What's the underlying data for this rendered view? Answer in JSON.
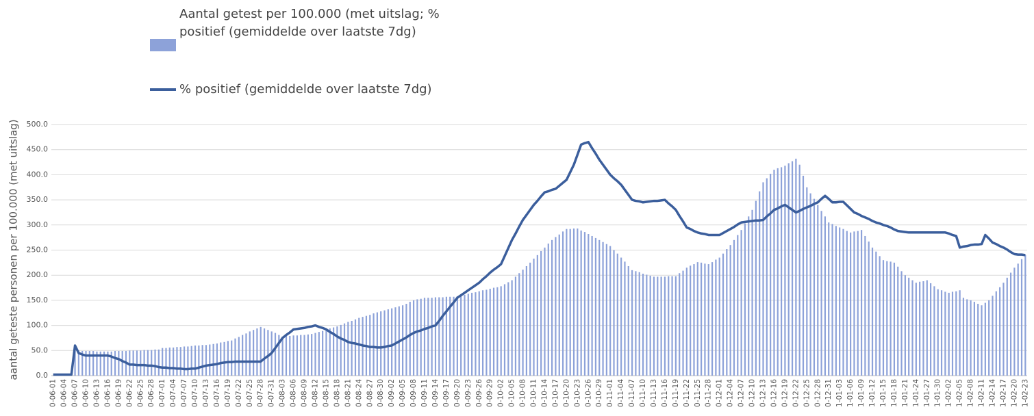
{
  "chart_data": {
    "type": "bar_line",
    "y_label": "aantal geteste personen per 100.000 (met uitslag)",
    "ylim": [
      0,
      500
    ],
    "yticks": [
      {
        "value": 0,
        "label": "0.0"
      },
      {
        "value": 50,
        "label": "50.0"
      },
      {
        "value": 100,
        "label": "100.0"
      },
      {
        "value": 150,
        "label": "150.0"
      },
      {
        "value": 200,
        "label": "200.0"
      },
      {
        "value": 250,
        "label": "250.0"
      },
      {
        "value": 300,
        "label": "300.0"
      },
      {
        "value": 350,
        "label": "350.0"
      },
      {
        "value": 400,
        "label": "400.0"
      },
      {
        "value": 450,
        "label": "450.0"
      },
      {
        "value": 500,
        "label": "500.0"
      }
    ],
    "grid": true,
    "categories": [
      "0-06-01",
      null,
      null,
      "0-06-04",
      null,
      null,
      "0-06-07",
      null,
      null,
      "0-06-10",
      null,
      null,
      "0-06-13",
      null,
      null,
      "0-06-16",
      null,
      null,
      "0-06-19",
      null,
      null,
      "0-06-22",
      null,
      null,
      "0-06-25",
      null,
      null,
      "0-06-28",
      null,
      null,
      "0-07-01",
      null,
      null,
      "0-07-04",
      null,
      null,
      "0-07-07",
      null,
      null,
      "0-07-10",
      null,
      null,
      "0-07-13",
      null,
      null,
      "0-07-16",
      null,
      null,
      "0-07-19",
      null,
      null,
      "0-07-22",
      null,
      null,
      "0-07-25",
      null,
      null,
      "0-07-28",
      null,
      null,
      "0-07-31",
      null,
      null,
      "0-08-03",
      null,
      null,
      "0-08-06",
      null,
      null,
      "0-08-09",
      null,
      null,
      "0-08-12",
      null,
      null,
      "0-08-15",
      null,
      null,
      "0-08-18",
      null,
      null,
      "0-08-21",
      null,
      null,
      "0-08-24",
      null,
      null,
      "0-08-27",
      null,
      null,
      "0-08-30",
      null,
      null,
      "0-09-02",
      null,
      null,
      "0-09-05",
      null,
      null,
      "0-09-08",
      null,
      null,
      "0-09-11",
      null,
      null,
      "0-09-14",
      null,
      null,
      "0-09-17",
      null,
      null,
      "0-09-20",
      null,
      null,
      "0-09-23",
      null,
      null,
      "0-09-26",
      null,
      null,
      "0-09-29",
      null,
      null,
      "0-10-02",
      null,
      null,
      "0-10-05",
      null,
      null,
      "0-10-08",
      null,
      null,
      "0-10-11",
      null,
      null,
      "0-10-14",
      null,
      null,
      "0-10-17",
      null,
      null,
      "0-10-20",
      null,
      null,
      "0-10-23",
      null,
      null,
      "0-10-26",
      null,
      null,
      "0-10-29",
      null,
      null,
      "0-11-01",
      null,
      null,
      "0-11-04",
      null,
      null,
      "0-11-07",
      null,
      null,
      "0-11-10",
      null,
      null,
      "0-11-13",
      null,
      null,
      "0-11-16",
      null,
      null,
      "0-11-19",
      null,
      null,
      "0-11-22",
      null,
      null,
      "0-11-25",
      null,
      null,
      "0-11-28",
      null,
      null,
      "0-12-01",
      null,
      null,
      "0-12-04",
      null,
      null,
      "0-12-07",
      null,
      null,
      "0-12-10",
      null,
      null,
      "0-12-13",
      null,
      null,
      "0-12-16",
      null,
      null,
      "0-12-19",
      null,
      null,
      "0-12-22",
      null,
      null,
      "0-12-25",
      null,
      null,
      "0-12-28",
      null,
      null,
      "0-12-31",
      null,
      null,
      "1-01-03",
      null,
      null,
      "1-01-06",
      null,
      null,
      "1-01-09",
      null,
      null,
      "1-01-12",
      null,
      null,
      "1-01-15",
      null,
      null,
      "1-01-18",
      null,
      null,
      "1-01-21",
      null,
      null,
      "1-01-24",
      null,
      null,
      "1-01-27",
      null,
      null,
      "1-01-30",
      null,
      null,
      "1-02-02",
      null,
      null,
      "1-02-05",
      null,
      null,
      "1-02-08",
      null,
      null,
      "1-02-11",
      null,
      null,
      "1-02-14",
      null,
      null,
      "1-02-17",
      null,
      null,
      "1-02-20",
      null,
      null,
      "1-02-23"
    ],
    "series": [
      {
        "name": "Aantal getest per 100.000 (met uitslag; % positief (gemiddelde over laatste 7dg)",
        "kind": "bar",
        "color": "#8da2d9",
        "values": [
          0,
          0,
          0,
          0,
          0,
          0,
          50,
          50,
          49,
          49,
          49,
          49,
          48,
          48,
          48,
          48,
          48,
          49,
          49,
          49,
          49,
          50,
          50,
          50,
          50,
          51,
          51,
          51,
          52,
          52,
          55,
          55,
          56,
          56,
          57,
          57,
          58,
          58,
          59,
          60,
          60,
          61,
          61,
          62,
          63,
          64,
          66,
          67,
          69,
          70,
          74,
          77,
          81,
          84,
          88,
          91,
          94,
          97,
          94,
          91,
          88,
          85,
          81,
          78,
          79,
          79,
          80,
          80,
          81,
          81,
          82,
          83,
          85,
          87,
          89,
          91,
          94,
          96,
          98,
          101,
          104,
          107,
          109,
          112,
          115,
          117,
          119,
          121,
          124,
          126,
          128,
          130,
          132,
          134,
          136,
          138,
          140,
          143,
          147,
          150,
          152,
          153,
          155,
          155,
          155,
          156,
          156,
          156,
          157,
          157,
          157,
          158,
          160,
          161,
          163,
          165,
          166,
          168,
          170,
          171,
          173,
          175,
          176,
          178,
          182,
          186,
          190,
          197,
          204,
          211,
          218,
          225,
          233,
          240,
          248,
          255,
          263,
          270,
          276,
          281,
          287,
          292,
          292,
          293,
          293,
          289,
          286,
          282,
          278,
          274,
          270,
          266,
          262,
          258,
          250,
          243,
          235,
          227,
          218,
          210,
          208,
          206,
          203,
          201,
          199,
          197,
          197,
          197,
          197,
          198,
          198,
          198,
          204,
          209,
          215,
          219,
          222,
          226,
          225,
          223,
          222,
          226,
          231,
          235,
          243,
          252,
          260,
          270,
          280,
          290,
          303,
          317,
          330,
          348,
          367,
          385,
          393,
          402,
          410,
          413,
          415,
          418,
          423,
          427,
          432,
          420,
          398,
          375,
          363,
          352,
          340,
          328,
          317,
          305,
          302,
          298,
          295,
          292,
          288,
          285,
          287,
          288,
          290,
          278,
          267,
          255,
          247,
          238,
          230,
          228,
          227,
          225,
          217,
          208,
          200,
          195,
          190,
          185,
          187,
          188,
          190,
          184,
          178,
          172,
          170,
          167,
          165,
          167,
          168,
          170,
          155,
          152,
          150,
          147,
          143,
          140,
          145,
          150,
          159,
          168,
          176,
          185,
          195,
          205,
          215,
          223,
          232,
          240
        ]
      },
      {
        "name": "% positief (gemiddelde over laatste 7dg)",
        "kind": "line",
        "color": "#3b5e9c",
        "values": [
          2,
          2,
          2,
          2,
          2,
          2,
          60,
          45,
          42,
          40,
          40,
          40,
          40,
          40,
          40,
          40,
          38,
          35,
          33,
          29,
          26,
          22,
          22,
          21,
          21,
          21,
          20,
          20,
          19,
          17,
          16,
          16,
          15,
          15,
          14,
          14,
          13,
          13,
          14,
          14,
          16,
          18,
          20,
          21,
          22,
          23,
          25,
          26,
          27,
          27,
          28,
          28,
          28,
          28,
          28,
          28,
          28,
          28,
          34,
          39,
          45,
          55,
          65,
          75,
          81,
          86,
          92,
          93,
          94,
          95,
          97,
          98,
          100,
          97,
          95,
          92,
          87,
          83,
          78,
          74,
          71,
          67,
          65,
          64,
          62,
          60,
          59,
          57,
          57,
          56,
          56,
          57,
          59,
          60,
          64,
          68,
          72,
          76,
          81,
          85,
          88,
          90,
          93,
          95,
          98,
          100,
          109,
          119,
          128,
          137,
          146,
          155,
          160,
          165,
          170,
          175,
          180,
          185,
          192,
          198,
          205,
          211,
          216,
          222,
          238,
          254,
          270,
          283,
          297,
          310,
          320,
          330,
          340,
          348,
          357,
          365,
          367,
          370,
          372,
          378,
          384,
          390,
          405,
          420,
          440,
          460,
          463,
          465,
          453,
          442,
          430,
          420,
          410,
          400,
          393,
          387,
          380,
          370,
          360,
          350,
          348,
          347,
          345,
          346,
          347,
          348,
          348,
          349,
          350,
          343,
          337,
          330,
          318,
          307,
          295,
          292,
          288,
          285,
          283,
          282,
          280,
          280,
          280,
          280,
          284,
          288,
          292,
          296,
          301,
          305,
          306,
          307,
          308,
          309,
          309,
          310,
          317,
          323,
          330,
          333,
          337,
          340,
          335,
          330,
          325,
          328,
          332,
          335,
          338,
          342,
          345,
          352,
          358,
          352,
          345,
          345,
          346,
          346,
          339,
          332,
          325,
          322,
          318,
          315,
          312,
          308,
          305,
          303,
          300,
          298,
          295,
          291,
          288,
          287,
          286,
          285,
          285,
          285,
          285,
          285,
          285,
          285,
          285,
          285,
          285,
          285,
          283,
          280,
          278,
          255,
          257,
          258,
          260,
          261,
          261,
          262,
          280,
          273,
          265,
          262,
          258,
          255,
          251,
          246,
          242,
          241,
          241,
          240
        ]
      }
    ]
  }
}
